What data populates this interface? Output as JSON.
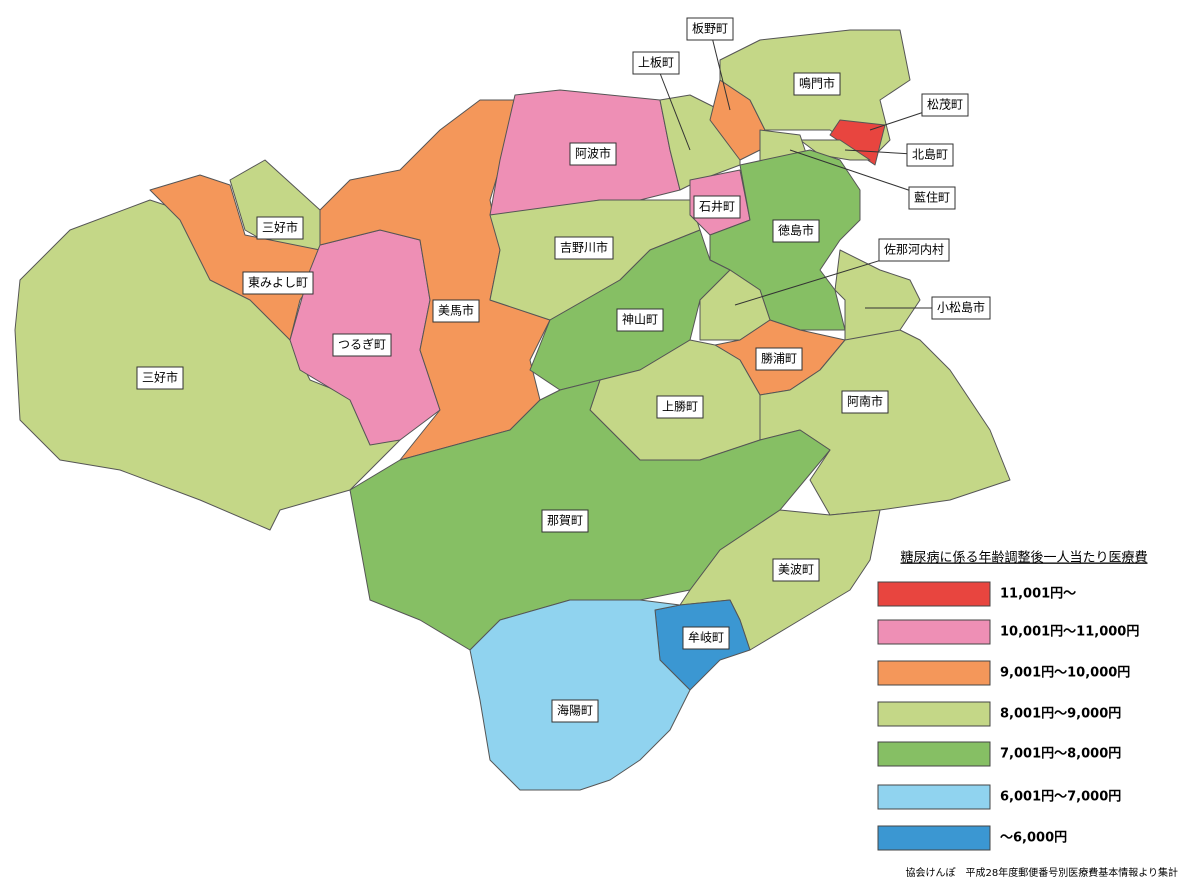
{
  "legend": {
    "title": "糖尿病に係る年齢調整後一人当たり医療費",
    "items": [
      {
        "label": "11,001円～",
        "color": "#e8453f"
      },
      {
        "label": "10,001円～11,000円",
        "color": "#ee8fb5"
      },
      {
        "label": "9,001円～10,000円",
        "color": "#f4975a"
      },
      {
        "label": "8,001円～9,000円",
        "color": "#c4d787"
      },
      {
        "label": "7,001円～8,000円",
        "color": "#86bf64"
      },
      {
        "label": "6,001円～7,000円",
        "color": "#90d3ef"
      },
      {
        "label": "～6,000円",
        "color": "#3b97d2"
      }
    ]
  },
  "regions": [
    {
      "label": "三好市",
      "color": "#c4d787"
    },
    {
      "label": "三好市",
      "color": "#c4d787"
    },
    {
      "label": "東みよし町",
      "color": "#f4975a"
    },
    {
      "label": "つるぎ町",
      "color": "#ee8fb5"
    },
    {
      "label": "美馬市",
      "color": "#f4975a"
    },
    {
      "label": "阿波市",
      "color": "#ee8fb5"
    },
    {
      "label": "吉野川市",
      "color": "#c4d787"
    },
    {
      "label": "上板町",
      "color": "#c4d787"
    },
    {
      "label": "板野町",
      "color": "#f4975a"
    },
    {
      "label": "鳴門市",
      "color": "#c4d787"
    },
    {
      "label": "松茂町",
      "color": "#e8453f"
    },
    {
      "label": "北島町",
      "color": "#c4d787"
    },
    {
      "label": "藍住町",
      "color": "#c4d787"
    },
    {
      "label": "石井町",
      "color": "#ee8fb5"
    },
    {
      "label": "徳島市",
      "color": "#86bf64"
    },
    {
      "label": "神山町",
      "color": "#86bf64"
    },
    {
      "label": "佐那河内村",
      "color": "#c4d787"
    },
    {
      "label": "勝浦町",
      "color": "#f4975a"
    },
    {
      "label": "上勝町",
      "color": "#c4d787"
    },
    {
      "label": "小松島市",
      "color": "#c4d787"
    },
    {
      "label": "阿南市",
      "color": "#c4d787"
    },
    {
      "label": "那賀町",
      "color": "#86bf64"
    },
    {
      "label": "美波町",
      "color": "#c4d787"
    },
    {
      "label": "牟岐町",
      "color": "#3b97d2"
    },
    {
      "label": "海陽町",
      "color": "#90d3ef"
    }
  ],
  "source": "協会けんぽ　平成28年度郵便番号別医療費基本情報より集計"
}
